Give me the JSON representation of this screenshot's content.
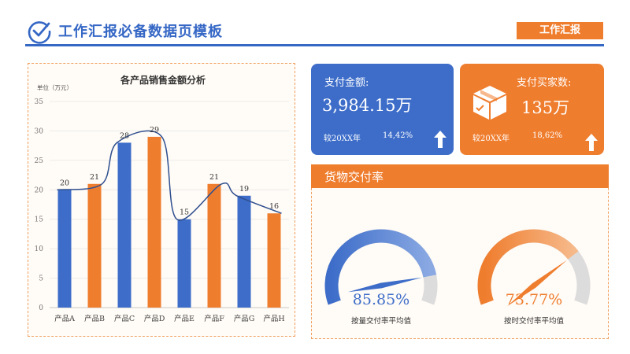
{
  "header": {
    "title": "工作汇报必备数据页模板",
    "button_label": "工作汇报"
  },
  "colors": {
    "blue": "#3d6dc9",
    "orange": "#ef7d2e",
    "track": "#dcdcdc"
  },
  "icons": {
    "header": "check-circle-icon",
    "package": "package-icon",
    "arrow": "arrow-up-icon"
  },
  "chart_data": {
    "type": "bar",
    "title": "各产品销售金额分析",
    "unit_label": "单位（万元）",
    "categories": [
      "产品A",
      "产品B",
      "产品C",
      "产品D",
      "产品E",
      "产品F",
      "产品G",
      "产品H"
    ],
    "values": [
      20,
      21,
      28,
      29,
      15,
      21,
      19,
      16
    ],
    "bar_colors": [
      "#3d6dc9",
      "#ef7d2e",
      "#3d6dc9",
      "#ef7d2e",
      "#3d6dc9",
      "#ef7d2e",
      "#3d6dc9",
      "#ef7d2e"
    ],
    "trend_line": "smooth",
    "ylim": [
      0,
      35
    ],
    "yticks": [
      0,
      5,
      10,
      15,
      20,
      25,
      30,
      35
    ],
    "grid": true,
    "data_labels": true
  },
  "cards": {
    "payment": {
      "title": "支付金额:",
      "value": "3,984.15万",
      "compare": "较20XX年",
      "change": "14,42%"
    },
    "buyers": {
      "title": "支付买家数:",
      "value": "135万",
      "compare": "较20XX年",
      "change": "18,62%"
    }
  },
  "delivery": {
    "title": "货物交付率",
    "gauges": [
      {
        "value": 85.85,
        "label": "85.85%",
        "caption": "按量交付率平均值",
        "color": "#3d6dc9",
        "light": "#8aa9e3"
      },
      {
        "value": 73.77,
        "label": "73.77%",
        "caption": "按时交付率平均值",
        "color": "#ef7d2e",
        "light": "#f6b98a"
      }
    ]
  }
}
